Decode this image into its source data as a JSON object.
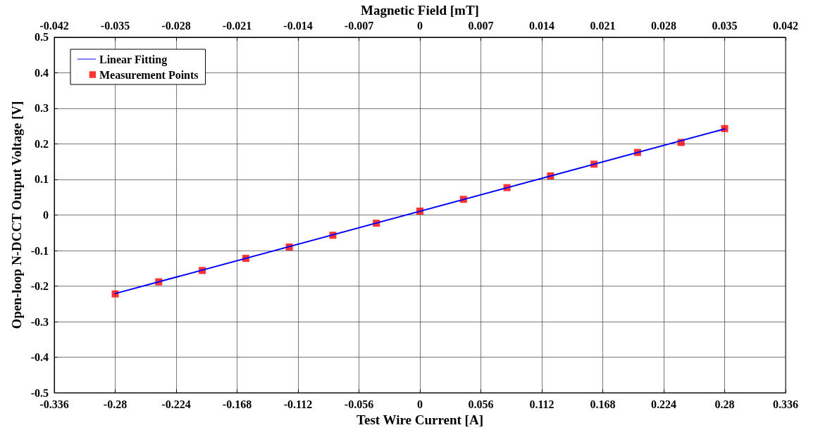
{
  "chart_data": {
    "type": "scatter",
    "xlabel": "Test Wire Current [A]",
    "x2label": "Magnetic Field [mT]",
    "ylabel": "Open-loop N-DCCT Output Voltage [V]",
    "xlim": [
      -0.336,
      0.336
    ],
    "xticks": [
      -0.336,
      -0.28,
      -0.224,
      -0.168,
      -0.112,
      -0.056,
      0,
      0.056,
      0.112,
      0.168,
      0.224,
      0.28,
      0.336
    ],
    "x2lim": [
      -0.042,
      0.042
    ],
    "x2ticks": [
      -0.042,
      -0.035,
      -0.028,
      -0.021,
      -0.014,
      -0.007,
      0,
      0.007,
      0.014,
      0.021,
      0.028,
      0.035,
      0.042
    ],
    "ylim": [
      -0.5,
      0.5
    ],
    "yticks": [
      -0.5,
      -0.4,
      -0.3,
      -0.2,
      -0.1,
      0,
      0.1,
      0.2,
      0.3,
      0.4,
      0.5
    ],
    "grid": true,
    "legend": "top left",
    "series": [
      {
        "name": "Linear Fitting",
        "type": "line",
        "color": "#0000ff",
        "marker": "none",
        "line_style": "solid",
        "x": [
          -0.28,
          0.28
        ],
        "values": [
          -0.221,
          0.242
        ]
      },
      {
        "name": "Measurement Points",
        "color": "#ff0000",
        "marker": "square",
        "x": [
          -0.28,
          -0.24,
          -0.2,
          -0.16,
          -0.12,
          -0.08,
          -0.04,
          0,
          0.04,
          0.08,
          0.12,
          0.16,
          0.2,
          0.24,
          0.28
        ],
        "values": [
          -0.222,
          -0.188,
          -0.156,
          -0.122,
          -0.09,
          -0.057,
          -0.023,
          0.011,
          0.044,
          0.077,
          0.11,
          0.143,
          0.176,
          0.204,
          0.243
        ]
      }
    ]
  }
}
